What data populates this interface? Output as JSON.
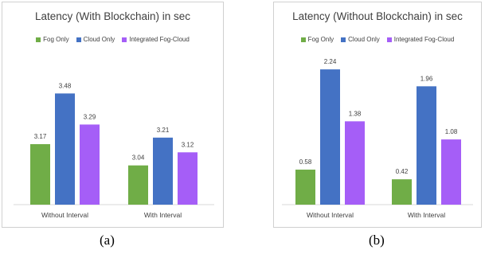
{
  "chart_data": [
    {
      "type": "bar",
      "title": "Latency (With Blockchain) in sec",
      "categories": [
        "Without Interval",
        "With Interval"
      ],
      "series": [
        {
          "name": "Fog Only",
          "color": "#70ad47",
          "values": [
            3.17,
            3.04
          ]
        },
        {
          "name": "Cloud Only",
          "color": "#4472c4",
          "values": [
            3.48,
            3.21
          ]
        },
        {
          "name": "Integrated Fog-Cloud",
          "color": "#a55ef7",
          "values": [
            3.29,
            3.12
          ]
        }
      ],
      "ylim": [
        2.8,
        3.55
      ],
      "grid": false,
      "legend": "top"
    },
    {
      "type": "bar",
      "title": "Latency (Without Blockchain) in sec",
      "categories": [
        "Without Interval",
        "With Interval"
      ],
      "series": [
        {
          "name": "Fog Only",
          "color": "#70ad47",
          "values": [
            0.58,
            0.42
          ]
        },
        {
          "name": "Cloud Only",
          "color": "#4472c4",
          "values": [
            2.24,
            1.96
          ]
        },
        {
          "name": "Integrated Fog-Cloud",
          "color": "#a55ef7",
          "values": [
            1.38,
            1.08
          ]
        }
      ],
      "ylim": [
        0,
        2.4
      ],
      "grid": false,
      "legend": "top"
    }
  ],
  "captions": [
    "(a)",
    "(b)"
  ]
}
